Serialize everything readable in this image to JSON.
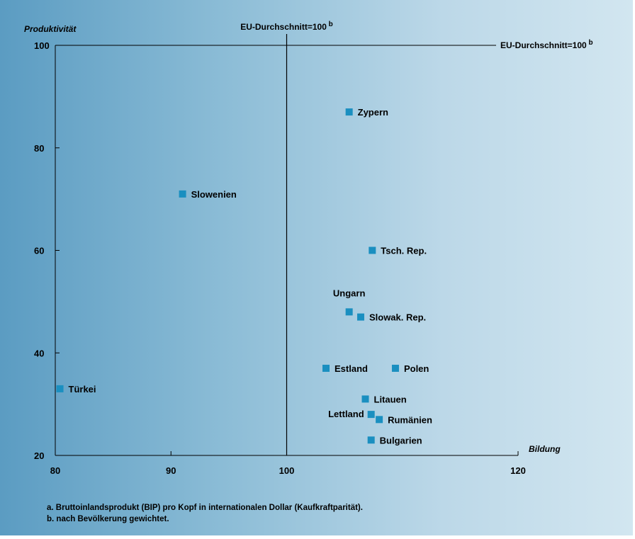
{
  "chart_data": {
    "type": "scatter",
    "ylabel": "Produktivität",
    "xlabel": "Bildung",
    "xlim": [
      80,
      120
    ],
    "ylim": [
      20,
      100
    ],
    "xticks": [
      "80",
      "90",
      "100",
      "120"
    ],
    "yticks": [
      "100",
      "80",
      "60",
      "40",
      "20"
    ],
    "reference_lines": {
      "vertical": {
        "x": 100,
        "label": "EU-Durchschnitt=100",
        "sup": "b"
      },
      "horizontal": {
        "y": 100,
        "label": "EU-Durchschnitt=100",
        "sup": "b"
      }
    },
    "marker_color": "#1a8fc0",
    "points": [
      {
        "label": "Zypern",
        "x": 105.4,
        "y": 87
      },
      {
        "label": "Slowenien",
        "x": 91.0,
        "y": 71
      },
      {
        "label": "Tsch. Rep.",
        "x": 107.4,
        "y": 60
      },
      {
        "label": "Ungarn",
        "x": 105.4,
        "y": 48
      },
      {
        "label": "Slowak. Rep.",
        "x": 106.4,
        "y": 47
      },
      {
        "label": "Estland",
        "x": 103.4,
        "y": 37
      },
      {
        "label": "Polen",
        "x": 109.4,
        "y": 37
      },
      {
        "label": "Türkei",
        "x": 80.4,
        "y": 33
      },
      {
        "label": "Litauen",
        "x": 106.8,
        "y": 31
      },
      {
        "label": "Lettland",
        "x": 107.3,
        "y": 28
      },
      {
        "label": "Rumänien",
        "x": 108.0,
        "y": 27
      },
      {
        "label": "Bulgarien",
        "x": 107.3,
        "y": 23
      }
    ]
  },
  "footnotes": [
    "a. Bruttoinlandsprodukt (BIP) pro Kopf in internationalen Dollar (Kaufkraftparität).",
    "b. nach Bevölkerung gewichtet."
  ]
}
